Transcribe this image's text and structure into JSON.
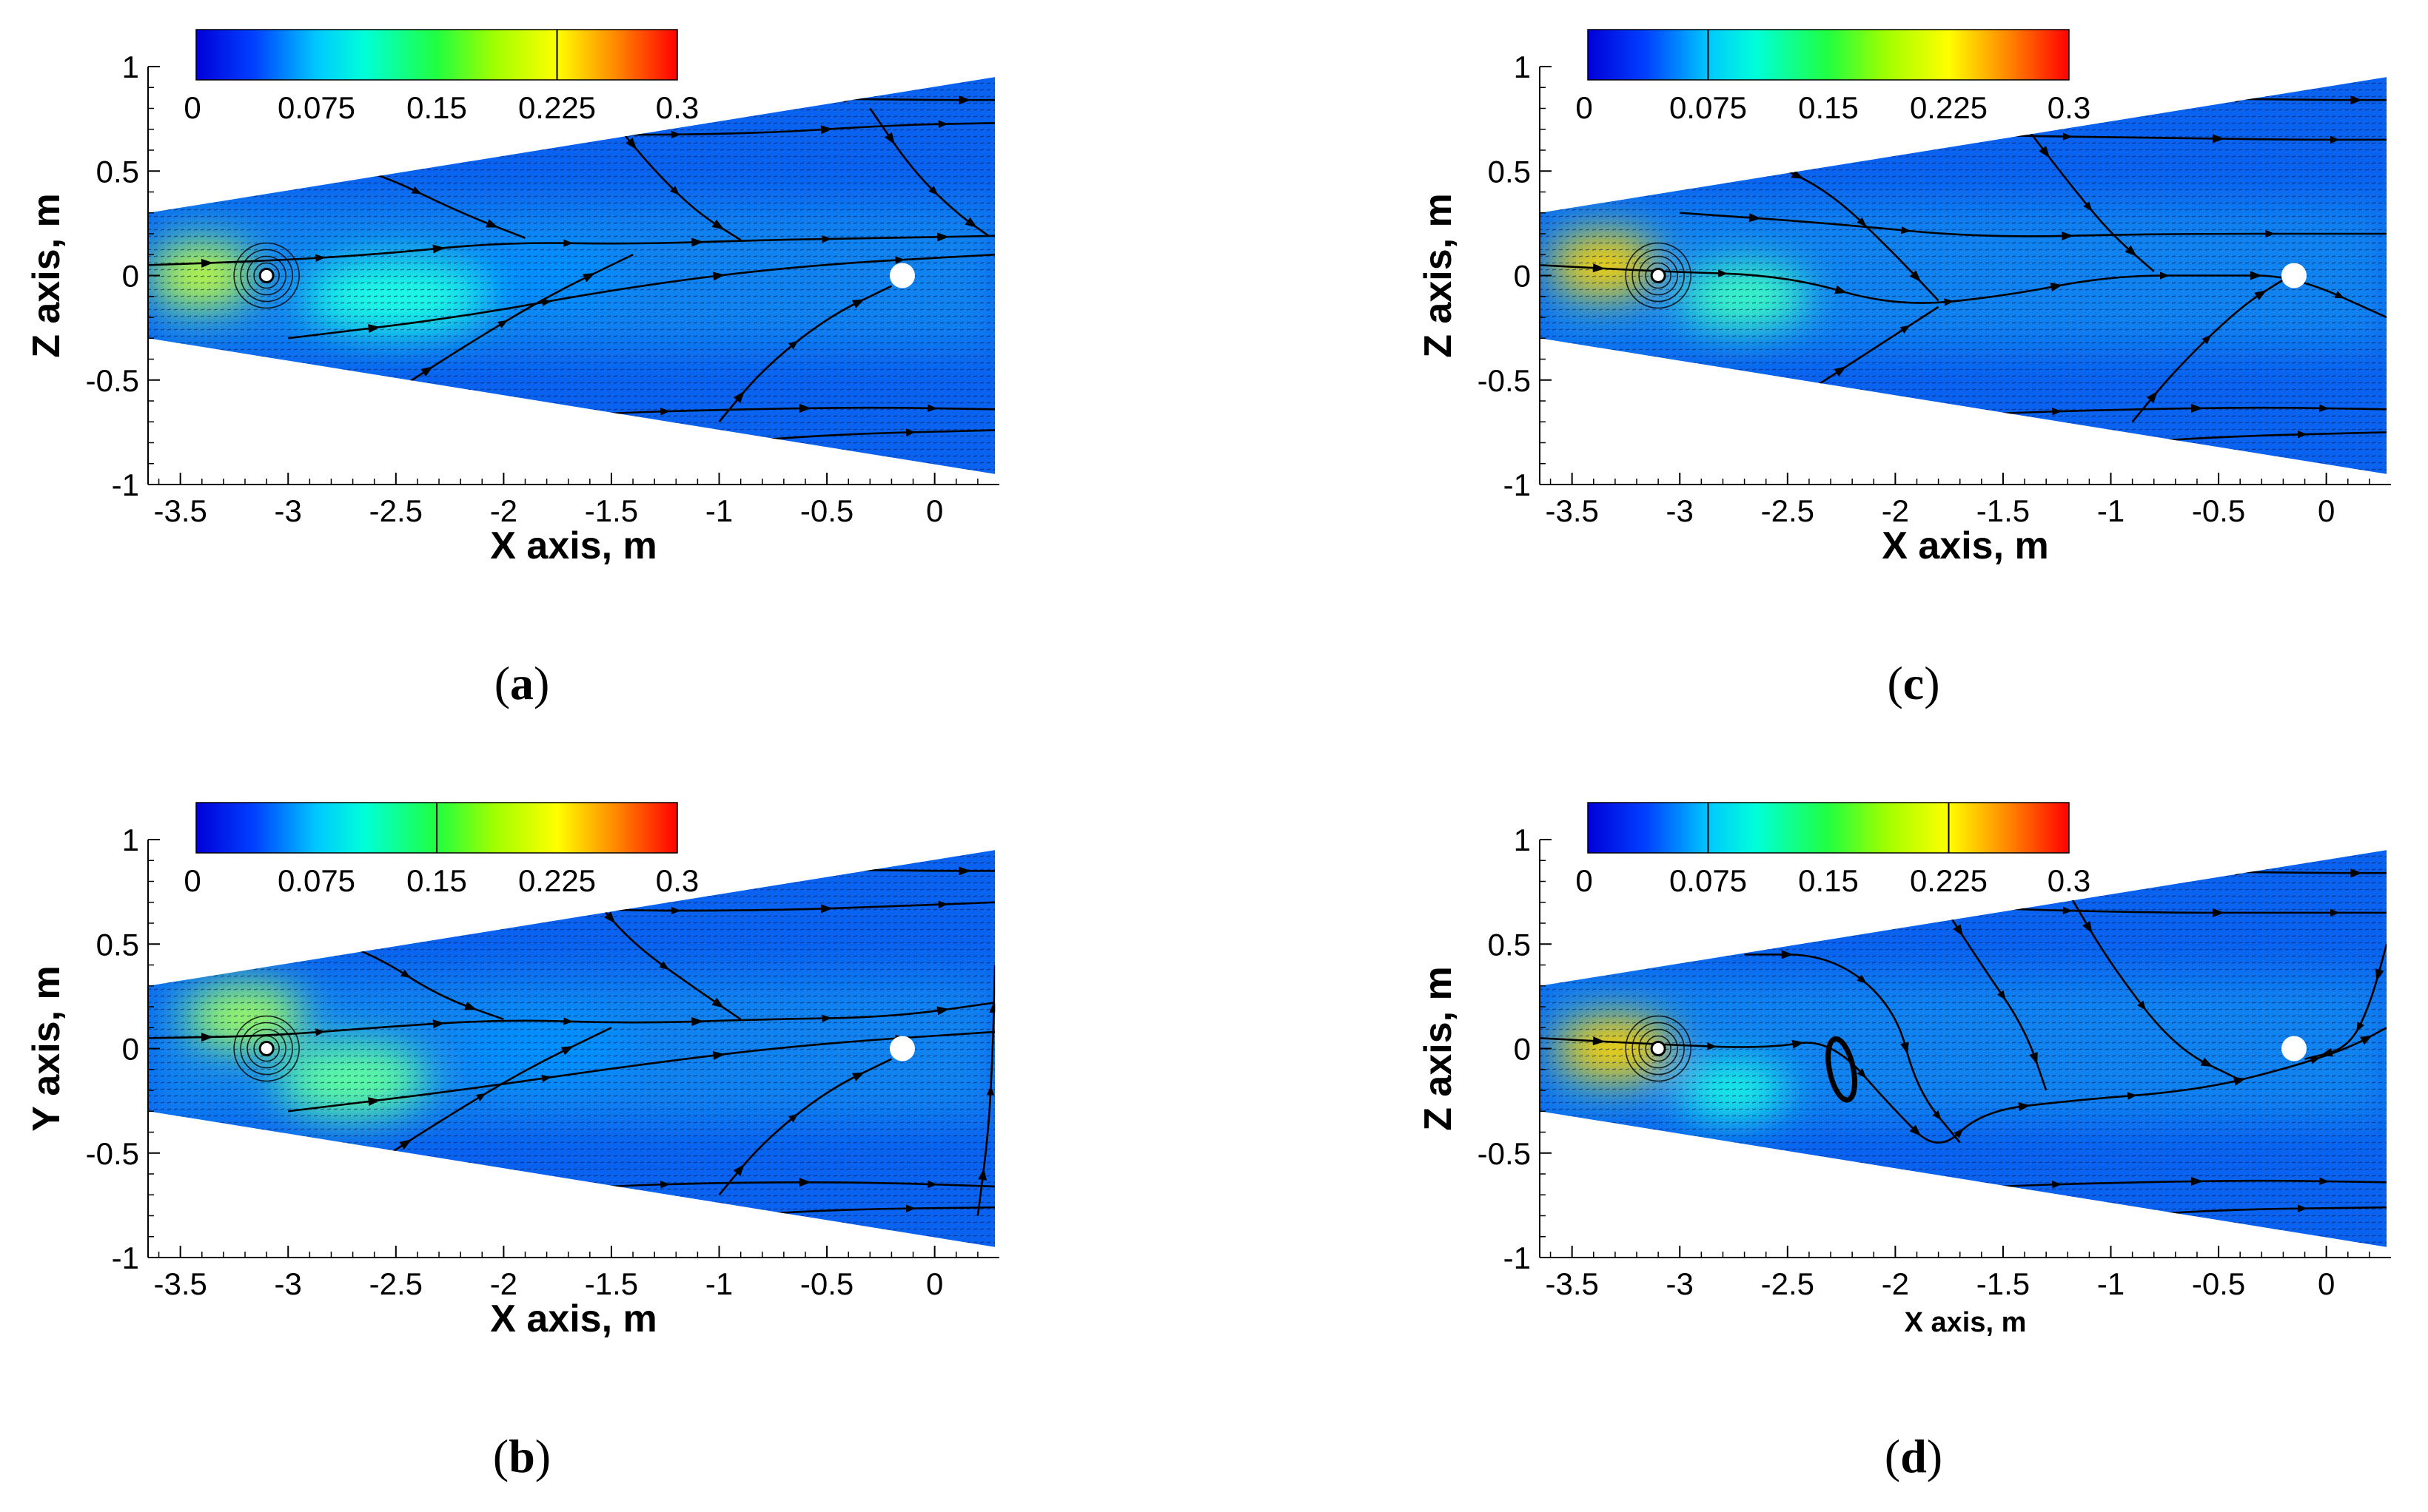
{
  "chart_data": [
    {
      "id": "a",
      "type": "heatmap",
      "panel_label": "a",
      "xlabel": "X axis, m",
      "ylabel": "Z axis, m",
      "xlim": [
        -3.65,
        0.3
      ],
      "ylim": [
        -1,
        1
      ],
      "xticks": [
        -3.5,
        -3,
        -2.5,
        -2,
        -1.5,
        -1,
        -0.5,
        0
      ],
      "xtick_labels": [
        "-3.5",
        "-3",
        "-2.5",
        "-2",
        "-1.5",
        "-1",
        "-0.5",
        "0"
      ],
      "yticks": [
        -1,
        -0.5,
        0,
        0.5,
        1
      ],
      "ytick_labels": [
        "-1",
        "-0.5",
        "0",
        "0.5",
        "1"
      ],
      "colorbar": {
        "min": 0,
        "max": 0.3,
        "ticks": [
          0,
          0.075,
          0.15,
          0.225,
          0.3
        ],
        "tick_labels": [
          "0",
          "0.075",
          "0.15",
          "0.225",
          "0.3"
        ],
        "marker": 0.225
      },
      "domain": {
        "left_x": -3.65,
        "left_top": 0.3,
        "left_bottom": -0.3,
        "right_x": 0.28,
        "right_top": 0.95,
        "right_bottom": -0.95
      },
      "source_point": [
        -3.1,
        0
      ],
      "marker_point": [
        -0.15,
        0
      ],
      "hot_spots": [
        [
          -3.4,
          0,
          0.48,
          0.3,
          0.17
        ],
        [
          -2.5,
          -0.1,
          0.85,
          0.35,
          0.12
        ],
        [
          -1.8,
          0.0,
          0.7,
          0.3,
          0.08
        ]
      ],
      "streamlines": [
        [
          [
            -3.65,
            0.05
          ],
          [
            -3.1,
            0.07
          ],
          [
            -2.6,
            0.1
          ],
          [
            -2.0,
            0.16
          ],
          [
            -1.4,
            0.15
          ],
          [
            -0.8,
            0.17
          ],
          [
            -0.2,
            0.18
          ],
          [
            0.28,
            0.19
          ]
        ],
        [
          [
            -2.3,
            0.72
          ],
          [
            -1.6,
            0.67
          ],
          [
            -0.8,
            0.68
          ],
          [
            -0.2,
            0.72
          ],
          [
            0.28,
            0.73
          ]
        ],
        [
          [
            -1.8,
            0.9
          ],
          [
            -0.8,
            0.85
          ],
          [
            0.0,
            0.84
          ],
          [
            0.28,
            0.84
          ]
        ],
        [
          [
            -2.3,
            -0.72
          ],
          [
            -1.6,
            -0.66
          ],
          [
            -0.9,
            -0.64
          ],
          [
            -0.3,
            -0.63
          ],
          [
            0.28,
            -0.64
          ]
        ],
        [
          [
            -1.2,
            -0.82
          ],
          [
            -0.5,
            -0.76
          ],
          [
            0.28,
            -0.74
          ]
        ],
        [
          [
            -3.0,
            -0.3
          ],
          [
            -2.2,
            -0.2
          ],
          [
            -1.4,
            -0.05
          ],
          [
            -0.6,
            0.05
          ],
          [
            0.28,
            0.1
          ]
        ],
        [
          [
            -2.9,
            0.55
          ],
          [
            -2.6,
            0.5
          ],
          [
            -2.2,
            0.3
          ],
          [
            -1.9,
            0.18
          ]
        ],
        [
          [
            -2.5,
            -0.55
          ],
          [
            -2.2,
            -0.35
          ],
          [
            -1.8,
            -0.1
          ],
          [
            -1.4,
            0.1
          ]
        ],
        [
          [
            -1.5,
            0.75
          ],
          [
            -1.3,
            0.5
          ],
          [
            -1.1,
            0.3
          ],
          [
            -0.9,
            0.17
          ]
        ],
        [
          [
            -1.0,
            -0.7
          ],
          [
            -0.8,
            -0.45
          ],
          [
            -0.5,
            -0.2
          ],
          [
            -0.2,
            -0.05
          ]
        ],
        [
          [
            -0.3,
            0.8
          ],
          [
            -0.1,
            0.5
          ],
          [
            0.1,
            0.3
          ],
          [
            0.25,
            0.19
          ]
        ]
      ]
    },
    {
      "id": "b",
      "type": "heatmap",
      "panel_label": "b",
      "xlabel": "X axis, m",
      "ylabel": "Y axis, m",
      "xlim": [
        -3.65,
        0.3
      ],
      "ylim": [
        -1,
        1
      ],
      "xticks": [
        -3.5,
        -3,
        -2.5,
        -2,
        -1.5,
        -1,
        -0.5,
        0
      ],
      "xtick_labels": [
        "-3.5",
        "-3",
        "-2.5",
        "-2",
        "-1.5",
        "-1",
        "-0.5",
        "0"
      ],
      "yticks": [
        -1,
        -0.5,
        0,
        0.5,
        1
      ],
      "ytick_labels": [
        "-1",
        "-0.5",
        "0",
        "0.5",
        "1"
      ],
      "colorbar": {
        "min": 0,
        "max": 0.3,
        "ticks": [
          0,
          0.075,
          0.15,
          0.225,
          0.3
        ],
        "tick_labels": [
          "0",
          "0.075",
          "0.15",
          "0.225",
          "0.3"
        ],
        "marker": 0.15
      },
      "domain": {
        "left_x": -3.65,
        "left_top": 0.3,
        "left_bottom": -0.3,
        "right_x": 0.28,
        "right_top": 0.95,
        "right_bottom": -0.95
      },
      "source_point": [
        -3.1,
        0
      ],
      "marker_point": [
        -0.15,
        0
      ],
      "hot_spots": [
        [
          -3.2,
          0.15,
          0.55,
          0.3,
          0.16
        ],
        [
          -2.7,
          -0.15,
          0.7,
          0.35,
          0.14
        ],
        [
          -1.8,
          0.0,
          0.8,
          0.35,
          0.08
        ]
      ],
      "streamlines": [
        [
          [
            -3.65,
            0.05
          ],
          [
            -3.1,
            0.06
          ],
          [
            -2.6,
            0.1
          ],
          [
            -2.0,
            0.14
          ],
          [
            -1.4,
            0.12
          ],
          [
            -0.8,
            0.14
          ],
          [
            -0.2,
            0.15
          ],
          [
            0.28,
            0.22
          ]
        ],
        [
          [
            -2.3,
            0.72
          ],
          [
            -1.6,
            0.66
          ],
          [
            -0.8,
            0.66
          ],
          [
            -0.2,
            0.68
          ],
          [
            0.28,
            0.7
          ]
        ],
        [
          [
            -1.8,
            0.9
          ],
          [
            -0.8,
            0.86
          ],
          [
            0.0,
            0.85
          ],
          [
            0.28,
            0.85
          ]
        ],
        [
          [
            -2.3,
            -0.72
          ],
          [
            -1.6,
            -0.66
          ],
          [
            -0.9,
            -0.64
          ],
          [
            -0.3,
            -0.64
          ],
          [
            0.28,
            -0.66
          ]
        ],
        [
          [
            -1.2,
            -0.82
          ],
          [
            -0.5,
            -0.77
          ],
          [
            0.28,
            -0.76
          ]
        ],
        [
          [
            -3.0,
            -0.3
          ],
          [
            -2.2,
            -0.2
          ],
          [
            -1.4,
            -0.08
          ],
          [
            -0.6,
            0.02
          ],
          [
            0.28,
            0.08
          ]
        ],
        [
          [
            -2.9,
            0.55
          ],
          [
            -2.6,
            0.45
          ],
          [
            -2.3,
            0.25
          ],
          [
            -2.0,
            0.14
          ]
        ],
        [
          [
            -2.6,
            -0.55
          ],
          [
            -2.3,
            -0.35
          ],
          [
            -1.9,
            -0.1
          ],
          [
            -1.5,
            0.1
          ]
        ],
        [
          [
            -1.6,
            0.74
          ],
          [
            -1.4,
            0.5
          ],
          [
            -1.1,
            0.28
          ],
          [
            -0.9,
            0.14
          ]
        ],
        [
          [
            -1.0,
            -0.7
          ],
          [
            -0.8,
            -0.45
          ],
          [
            -0.5,
            -0.2
          ],
          [
            -0.2,
            -0.05
          ]
        ],
        [
          [
            0.2,
            -0.8
          ],
          [
            0.25,
            -0.4
          ],
          [
            0.27,
            0.0
          ],
          [
            0.28,
            0.4
          ]
        ]
      ]
    },
    {
      "id": "c",
      "type": "heatmap",
      "panel_label": "c",
      "xlabel": "X axis, m",
      "ylabel": "Z axis, m",
      "xlim": [
        -3.65,
        0.3
      ],
      "ylim": [
        -1,
        1
      ],
      "xticks": [
        -3.5,
        -3,
        -2.5,
        -2,
        -1.5,
        -1,
        -0.5,
        0
      ],
      "xtick_labels": [
        "-3.5",
        "-3",
        "-2.5",
        "-2",
        "-1.5",
        "-1",
        "-0.5",
        "0"
      ],
      "yticks": [
        -1,
        -0.5,
        0,
        0.5,
        1
      ],
      "ytick_labels": [
        "-1",
        "-0.5",
        "0",
        "0.5",
        "1"
      ],
      "colorbar": {
        "min": 0,
        "max": 0.3,
        "ticks": [
          0,
          0.075,
          0.15,
          0.225,
          0.3
        ],
        "tick_labels": [
          "0",
          "0.075",
          "0.15",
          "0.225",
          "0.3"
        ],
        "marker": 0.075
      },
      "domain": {
        "left_x": -3.65,
        "left_top": 0.3,
        "left_bottom": -0.3,
        "right_x": 0.28,
        "right_top": 0.95,
        "right_bottom": -0.95
      },
      "source_point": [
        -3.1,
        0
      ],
      "marker_point": [
        -0.15,
        0
      ],
      "hot_spots": [
        [
          -3.35,
          0.05,
          0.5,
          0.3,
          0.2
        ],
        [
          -2.7,
          -0.1,
          0.6,
          0.3,
          0.13
        ]
      ],
      "streamlines": [
        [
          [
            -3.65,
            0.05
          ],
          [
            -3.1,
            0.02
          ],
          [
            -2.5,
            0.0
          ],
          [
            -2.0,
            -0.15
          ],
          [
            -1.5,
            -0.1
          ],
          [
            -1.0,
            0.0
          ],
          [
            -0.5,
            0.0
          ],
          [
            -0.15,
            0.0
          ],
          [
            0.28,
            -0.2
          ]
        ],
        [
          [
            -2.3,
            0.72
          ],
          [
            -1.6,
            0.67
          ],
          [
            -0.8,
            0.66
          ],
          [
            -0.2,
            0.65
          ],
          [
            0.28,
            0.65
          ]
        ],
        [
          [
            -1.8,
            0.9
          ],
          [
            -0.8,
            0.85
          ],
          [
            0.0,
            0.84
          ],
          [
            0.28,
            0.84
          ]
        ],
        [
          [
            -2.3,
            -0.72
          ],
          [
            -1.6,
            -0.66
          ],
          [
            -0.9,
            -0.64
          ],
          [
            -0.3,
            -0.63
          ],
          [
            0.28,
            -0.64
          ]
        ],
        [
          [
            -1.2,
            -0.82
          ],
          [
            -0.5,
            -0.77
          ],
          [
            0.28,
            -0.75
          ]
        ],
        [
          [
            -3.0,
            0.3
          ],
          [
            -2.3,
            0.25
          ],
          [
            -1.6,
            0.18
          ],
          [
            -0.8,
            0.2
          ],
          [
            0.28,
            0.2
          ]
        ],
        [
          [
            -2.6,
            0.55
          ],
          [
            -2.3,
            0.4
          ],
          [
            -2.0,
            0.1
          ],
          [
            -1.8,
            -0.12
          ]
        ],
        [
          [
            -2.4,
            -0.55
          ],
          [
            -2.1,
            -0.35
          ],
          [
            -1.8,
            -0.15
          ]
        ],
        [
          [
            -1.4,
            0.72
          ],
          [
            -1.2,
            0.45
          ],
          [
            -1.0,
            0.2
          ],
          [
            -0.8,
            0.02
          ]
        ],
        [
          [
            -0.9,
            -0.7
          ],
          [
            -0.7,
            -0.45
          ],
          [
            -0.4,
            -0.15
          ],
          [
            -0.2,
            -0.02
          ]
        ]
      ]
    },
    {
      "id": "d",
      "type": "heatmap",
      "panel_label": "d",
      "xlabel": "X axis, m",
      "ylabel": "Z axis, m",
      "xlim": [
        -3.65,
        0.3
      ],
      "ylim": [
        -1,
        1
      ],
      "xticks": [
        -3.5,
        -3,
        -2.5,
        -2,
        -1.5,
        -1,
        -0.5,
        0
      ],
      "xtick_labels": [
        "-3.5",
        "-3",
        "-2.5",
        "-2",
        "-1.5",
        "-1",
        "-0.5",
        "0"
      ],
      "yticks": [
        -1,
        -0.5,
        0,
        0.5,
        1
      ],
      "ytick_labels": [
        "-1",
        "-0.5",
        "0",
        "0.5",
        "1"
      ],
      "colorbar": {
        "min": 0,
        "max": 0.3,
        "ticks": [
          0,
          0.075,
          0.15,
          0.225,
          0.3
        ],
        "tick_labels": [
          "0",
          "0.075",
          "0.15",
          "0.225",
          "0.3"
        ],
        "marker": 0.225,
        "marker2": 0.075
      },
      "domain": {
        "left_x": -3.65,
        "left_top": 0.3,
        "left_bottom": -0.3,
        "right_x": 0.28,
        "right_top": 0.95,
        "right_bottom": -0.95
      },
      "source_point": [
        -3.1,
        0
      ],
      "marker_point": [
        -0.15,
        0
      ],
      "vortex_point": [
        -2.25,
        -0.1
      ],
      "hot_spots": [
        [
          -3.3,
          0.0,
          0.55,
          0.3,
          0.2
        ],
        [
          -2.75,
          -0.2,
          0.5,
          0.25,
          0.12
        ]
      ],
      "streamlines": [
        [
          [
            -3.65,
            0.05
          ],
          [
            -3.1,
            0.02
          ],
          [
            -2.6,
            0.0
          ],
          [
            -2.3,
            0.05
          ],
          [
            -2.0,
            -0.3
          ],
          [
            -1.8,
            -0.5
          ],
          [
            -1.6,
            -0.3
          ],
          [
            -1.2,
            -0.25
          ],
          [
            -0.6,
            -0.2
          ],
          [
            -0.2,
            -0.1
          ],
          [
            0.1,
            0.0
          ],
          [
            0.28,
            0.1
          ]
        ],
        [
          [
            -2.3,
            0.72
          ],
          [
            -1.6,
            0.67
          ],
          [
            -0.8,
            0.65
          ],
          [
            -0.2,
            0.65
          ],
          [
            0.28,
            0.65
          ]
        ],
        [
          [
            -1.8,
            0.9
          ],
          [
            -0.8,
            0.85
          ],
          [
            0.0,
            0.84
          ],
          [
            0.28,
            0.84
          ]
        ],
        [
          [
            -2.3,
            -0.72
          ],
          [
            -1.6,
            -0.66
          ],
          [
            -0.9,
            -0.64
          ],
          [
            -0.3,
            -0.63
          ],
          [
            0.28,
            -0.64
          ]
        ],
        [
          [
            -1.2,
            -0.82
          ],
          [
            -0.5,
            -0.77
          ],
          [
            0.28,
            -0.76
          ]
        ],
        [
          [
            -2.7,
            0.45
          ],
          [
            -2.3,
            0.45
          ],
          [
            -2.0,
            0.2
          ],
          [
            -1.9,
            -0.2
          ],
          [
            -1.7,
            -0.45
          ]
        ],
        [
          [
            -1.8,
            0.72
          ],
          [
            -1.6,
            0.4
          ],
          [
            -1.4,
            0.1
          ],
          [
            -1.3,
            -0.2
          ]
        ],
        [
          [
            -1.2,
            0.75
          ],
          [
            -1.0,
            0.4
          ],
          [
            -0.7,
            0.0
          ],
          [
            -0.4,
            -0.15
          ]
        ],
        [
          [
            0.28,
            0.5
          ],
          [
            0.2,
            0.2
          ],
          [
            0.1,
            0.0
          ],
          [
            -0.1,
            -0.05
          ]
        ]
      ]
    }
  ]
}
